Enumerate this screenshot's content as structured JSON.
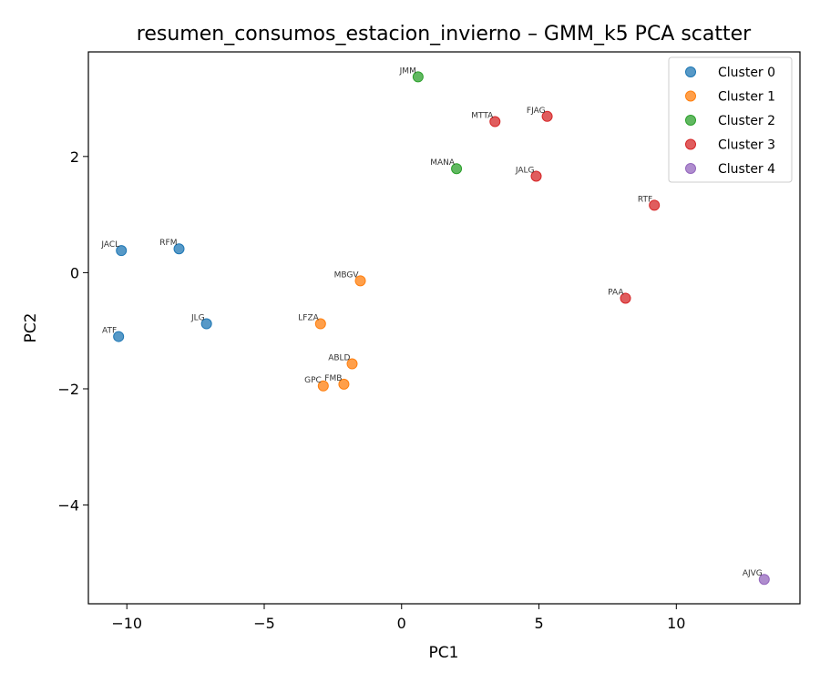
{
  "chart_data": {
    "type": "scatter",
    "title": "resumen_consumos_estacion_invierno – GMM_k5 PCA scatter",
    "xlabel": "PC1",
    "ylabel": "PC2",
    "xlim": [
      -11.4,
      14.5
    ],
    "ylim": [
      -5.7,
      3.8
    ],
    "xticks": [
      -10,
      -5,
      0,
      5,
      10
    ],
    "xtick_labels": [
      "−10",
      "−5",
      "0",
      "5",
      "10"
    ],
    "yticks": [
      2,
      0,
      -2,
      -4
    ],
    "ytick_labels": [
      "2",
      "0",
      "−2",
      "−4"
    ],
    "grid": false,
    "legend_position": "top-right",
    "series": [
      {
        "name": "Cluster 0",
        "color": "#1f77b4",
        "points": [
          {
            "label": "JACL",
            "x": -10.2,
            "y": 0.38
          },
          {
            "label": "RFM",
            "x": -8.1,
            "y": 0.41
          },
          {
            "label": "JLG",
            "x": -7.1,
            "y": -0.88
          },
          {
            "label": "ATF",
            "x": -10.3,
            "y": -1.1
          }
        ]
      },
      {
        "name": "Cluster 1",
        "color": "#ff7f0e",
        "points": [
          {
            "label": "MBGV",
            "x": -1.5,
            "y": -0.14
          },
          {
            "label": "LFZA",
            "x": -2.95,
            "y": -0.88
          },
          {
            "label": "ABLD",
            "x": -1.8,
            "y": -1.57
          },
          {
            "label": "GPC",
            "x": -2.85,
            "y": -1.95
          },
          {
            "label": "FMB",
            "x": -2.1,
            "y": -1.92
          }
        ]
      },
      {
        "name": "Cluster 2",
        "color": "#2ca02c",
        "points": [
          {
            "label": "JMM",
            "x": 0.6,
            "y": 3.37
          },
          {
            "label": "MANA",
            "x": 2.0,
            "y": 1.79
          }
        ]
      },
      {
        "name": "Cluster 3",
        "color": "#d62728",
        "points": [
          {
            "label": "MTTA",
            "x": 3.4,
            "y": 2.6
          },
          {
            "label": "FJAG",
            "x": 5.3,
            "y": 2.69
          },
          {
            "label": "JALG",
            "x": 4.9,
            "y": 1.66
          },
          {
            "label": "RTF",
            "x": 9.2,
            "y": 1.16
          },
          {
            "label": "PAA",
            "x": 8.15,
            "y": -0.44
          }
        ]
      },
      {
        "name": "Cluster 4",
        "color": "#9467bd",
        "points": [
          {
            "label": "AJVG",
            "x": 13.2,
            "y": -5.28
          }
        ]
      }
    ]
  }
}
